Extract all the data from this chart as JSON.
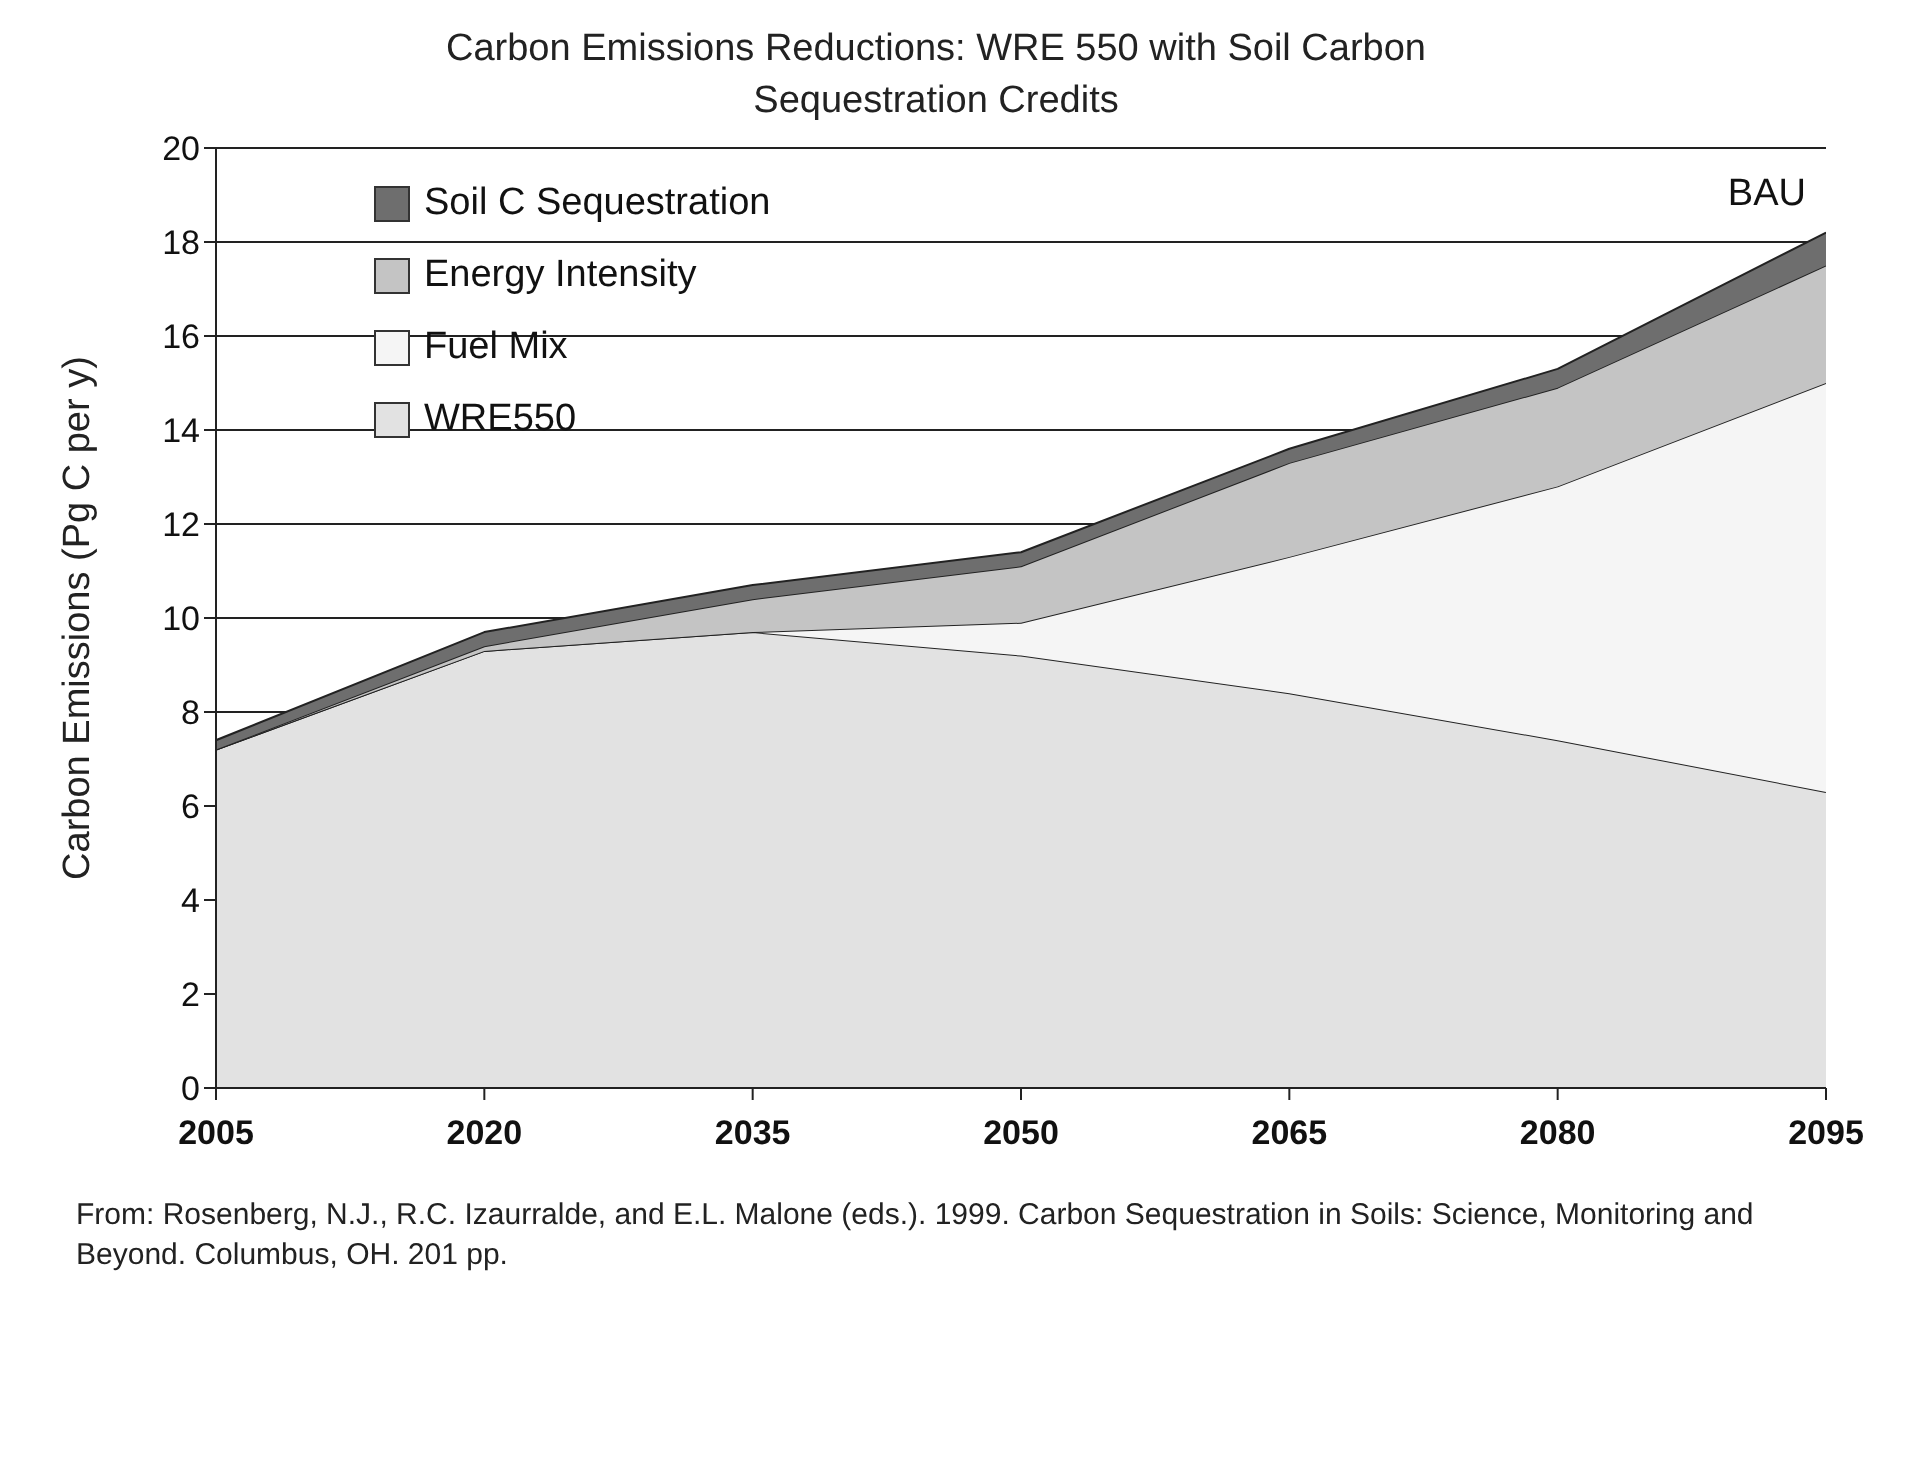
{
  "chart_data": {
    "type": "area",
    "stacked": true,
    "title": "Carbon Emissions Reductions:  WRE 550 with Soil Carbon Sequestration Credits",
    "ylabel": "Carbon Emissions (Pg C per y)",
    "x": [
      2005,
      2020,
      2035,
      2050,
      2065,
      2080,
      2095
    ],
    "series": [
      {
        "name": "WRE550",
        "color": "#e2e2e2",
        "values": [
          7.2,
          9.3,
          9.7,
          9.2,
          8.4,
          7.4,
          6.3
        ]
      },
      {
        "name": "Fuel Mix",
        "color": "#f5f5f5",
        "values": [
          0,
          0,
          0,
          0.7,
          2.9,
          5.4,
          8.7
        ]
      },
      {
        "name": "Energy Intensity",
        "color": "#c4c4c4",
        "values": [
          0,
          0.1,
          0.7,
          1.2,
          2.0,
          2.1,
          2.5
        ]
      },
      {
        "name": "Soil C Sequestration",
        "color": "#6e6e6e",
        "values": [
          0.2,
          0.3,
          0.3,
          0.3,
          0.3,
          0.4,
          0.7
        ]
      }
    ],
    "xlim": [
      2005,
      2095
    ],
    "xticks": [
      2005,
      2020,
      2035,
      2050,
      2065,
      2080,
      2095
    ],
    "ylim": [
      0,
      20
    ],
    "yticks": [
      0,
      2,
      4,
      6,
      8,
      10,
      12,
      14,
      16,
      18,
      20
    ],
    "grid": "y",
    "legend": "top left",
    "annotations": [
      {
        "text": "BAU",
        "x": 2095,
        "y": 18.2
      },
      "From: Rosenberg, N.J., R.C. Izaurralde, and E.L. Malone (eds.). 1999. Carbon Sequestration in Soils: Science, Monitoring and Beyond. Columbus, OH. 201 pp."
    ]
  }
}
